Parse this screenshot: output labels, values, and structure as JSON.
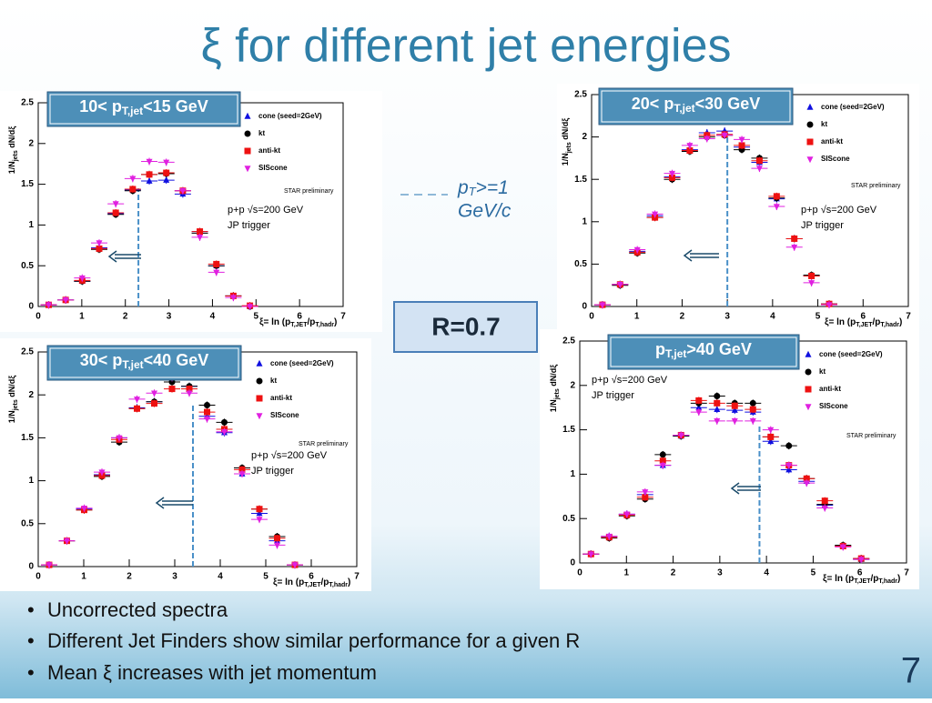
{
  "title": "ξ for different jet energies",
  "note": [
    "p",
    "T",
    ">=1",
    "GeV/c"
  ],
  "r_label": "R=0.7",
  "bullets": [
    "Uncorrected spectra",
    "Different Jet Finders show similar performance for a given R",
    "Mean ξ increases with jet momentum"
  ],
  "page_number": "7",
  "chart_data": [
    {
      "type": "scatter",
      "label": [
        "10< p",
        "T,jet",
        "<15 GeV"
      ],
      "x": [
        0.24,
        0.63,
        1.01,
        1.4,
        1.78,
        2.17,
        2.55,
        2.94,
        3.32,
        3.71,
        4.09,
        4.48,
        4.86,
        5.25,
        5.64,
        6.03
      ],
      "series": [
        {
          "name": "cone (seed=2GeV)",
          "color": "#1010e0",
          "marker": "triangle",
          "values": [
            0.02,
            0.08,
            0.31,
            0.72,
            1.14,
            1.43,
            1.54,
            1.55,
            1.38,
            0.92,
            0.5,
            0.13,
            0.0,
            null,
            null,
            null
          ]
        },
        {
          "name": "kt",
          "color": "#000000",
          "marker": "circle",
          "values": [
            0.02,
            0.08,
            0.31,
            0.7,
            1.13,
            1.42,
            1.62,
            1.63,
            1.42,
            0.9,
            0.5,
            0.13,
            0.0,
            null,
            null,
            null
          ]
        },
        {
          "name": "anti-kt",
          "color": "#ee1111",
          "marker": "square",
          "values": [
            0.02,
            0.08,
            0.32,
            0.71,
            1.15,
            1.44,
            1.62,
            1.64,
            1.42,
            0.92,
            0.52,
            0.13,
            0.01,
            null,
            null,
            null
          ]
        },
        {
          "name": "SIScone",
          "color": "#e020e0",
          "marker": "triangle-down",
          "values": [
            0.02,
            0.08,
            0.35,
            0.78,
            1.26,
            1.57,
            1.78,
            1.77,
            1.42,
            0.85,
            0.42,
            0.11,
            0.0,
            null,
            null,
            null
          ]
        }
      ],
      "xlim": [
        0,
        7
      ],
      "ylim": [
        0,
        2.5
      ],
      "xticks": [
        0,
        1,
        2,
        3,
        4,
        5,
        6,
        7
      ],
      "yticks": [
        0,
        0.5,
        1,
        1.5,
        2,
        2.5
      ],
      "xlabel": [
        "ξ= ln (p",
        "T,JET",
        "/p",
        "T,hadr",
        ")"
      ],
      "ylabel": [
        "1/N",
        "jets",
        "  dN/dξ"
      ],
      "annotations": [
        "STAR preliminary",
        "p+p √s=200 GeV",
        "JP trigger"
      ],
      "mean_xi": 2.3
    },
    {
      "type": "scatter",
      "label": [
        "20< p",
        "T,jet",
        "<30 GeV"
      ],
      "x": [
        0.24,
        0.63,
        1.01,
        1.4,
        1.78,
        2.17,
        2.55,
        2.94,
        3.32,
        3.71,
        4.09,
        4.48,
        4.86,
        5.25,
        5.64,
        6.03
      ],
      "series": [
        {
          "name": "cone (seed=2GeV)",
          "color": "#1010e0",
          "marker": "triangle",
          "values": [
            0.02,
            0.26,
            0.65,
            1.07,
            1.53,
            1.85,
            2.05,
            2.07,
            1.88,
            1.7,
            1.27,
            0.8,
            0.36,
            0.03,
            null,
            null
          ]
        },
        {
          "name": "kt",
          "color": "#000000",
          "marker": "circle",
          "values": [
            0.02,
            0.25,
            0.63,
            1.05,
            1.5,
            1.83,
            2.0,
            2.02,
            1.85,
            1.75,
            1.28,
            0.8,
            0.37,
            0.03,
            null,
            null
          ]
        },
        {
          "name": "anti-kt",
          "color": "#ee1111",
          "marker": "square",
          "values": [
            0.02,
            0.26,
            0.64,
            1.05,
            1.52,
            1.84,
            2.02,
            2.03,
            1.9,
            1.72,
            1.3,
            0.8,
            0.36,
            0.03,
            null,
            null
          ]
        },
        {
          "name": "SIScone",
          "color": "#e020e0",
          "marker": "triangle-down",
          "values": [
            0.02,
            0.26,
            0.67,
            1.09,
            1.57,
            1.9,
            1.98,
            2.02,
            1.97,
            1.63,
            1.18,
            0.7,
            0.28,
            0.02,
            null,
            null
          ]
        }
      ],
      "xlim": [
        0,
        7
      ],
      "ylim": [
        0,
        2.5
      ],
      "xticks": [
        0,
        1,
        2,
        3,
        4,
        5,
        6,
        7
      ],
      "yticks": [
        0,
        0.5,
        1,
        1.5,
        2,
        2.5
      ],
      "xlabel": [
        "ξ= ln (p",
        "T,JET",
        "/p",
        "T,hadr",
        ")"
      ],
      "ylabel": [
        "1/N",
        "jets",
        "  dN/dξ"
      ],
      "annotations": [
        "STAR preliminary",
        "p+p √s=200 GeV",
        "JP trigger"
      ],
      "mean_xi": 3.0
    },
    {
      "type": "scatter",
      "label": [
        "30< p",
        "T,jet",
        "<40 GeV"
      ],
      "x": [
        0.24,
        0.63,
        1.01,
        1.4,
        1.78,
        2.17,
        2.55,
        2.94,
        3.32,
        3.71,
        4.09,
        4.48,
        4.86,
        5.25,
        5.64,
        6.03
      ],
      "series": [
        {
          "name": "cone (seed=2GeV)",
          "color": "#1010e0",
          "marker": "triangle",
          "values": [
            0.02,
            0.3,
            0.67,
            1.07,
            1.5,
            1.85,
            1.92,
            2.2,
            2.1,
            1.75,
            1.56,
            1.08,
            0.62,
            0.3,
            0.02,
            null
          ]
        },
        {
          "name": "kt",
          "color": "#000000",
          "marker": "circle",
          "values": [
            0.02,
            0.3,
            0.66,
            1.05,
            1.45,
            1.84,
            1.92,
            2.15,
            2.1,
            1.88,
            1.68,
            1.15,
            0.67,
            0.35,
            0.02,
            null
          ]
        },
        {
          "name": "anti-kt",
          "color": "#ee1111",
          "marker": "square",
          "values": [
            0.02,
            0.3,
            0.66,
            1.06,
            1.48,
            1.84,
            1.9,
            2.07,
            2.07,
            1.8,
            1.6,
            1.13,
            0.67,
            0.33,
            0.02,
            null
          ]
        },
        {
          "name": "SIScone",
          "color": "#e020e0",
          "marker": "triangle-down",
          "values": [
            0.02,
            0.3,
            0.68,
            1.1,
            1.5,
            1.95,
            2.02,
            2.2,
            2.02,
            1.72,
            1.57,
            1.08,
            0.55,
            0.25,
            0.02,
            null
          ]
        }
      ],
      "xlim": [
        0,
        7
      ],
      "ylim": [
        0,
        2.5
      ],
      "xticks": [
        0,
        1,
        2,
        3,
        4,
        5,
        6,
        7
      ],
      "yticks": [
        0,
        0.5,
        1,
        1.5,
        2,
        2.5
      ],
      "xlabel": [
        "ξ= ln (p",
        "T,JET",
        "/p",
        "T,hadr",
        ")"
      ],
      "ylabel": [
        "1/N",
        "jets",
        "  dN/dξ"
      ],
      "annotations": [
        "STAR preliminary",
        "p+p √s=200 GeV",
        "JP trigger"
      ],
      "mean_xi": 3.4
    },
    {
      "type": "scatter",
      "label": [
        "p",
        "T,jet",
        ">40 GeV"
      ],
      "x": [
        0.24,
        0.63,
        1.01,
        1.4,
        1.78,
        2.17,
        2.55,
        2.94,
        3.32,
        3.71,
        4.09,
        4.48,
        4.86,
        5.25,
        5.64,
        6.03
      ],
      "series": [
        {
          "name": "cone (seed=2GeV)",
          "color": "#1010e0",
          "marker": "triangle",
          "values": [
            0.1,
            0.3,
            0.55,
            0.77,
            1.1,
            1.43,
            1.75,
            1.73,
            1.72,
            1.7,
            1.37,
            1.05,
            0.92,
            0.65,
            0.19,
            0.04
          ]
        },
        {
          "name": "kt",
          "color": "#000000",
          "marker": "circle",
          "values": [
            0.1,
            0.28,
            0.53,
            0.72,
            1.22,
            1.43,
            1.8,
            1.88,
            1.8,
            1.8,
            1.42,
            1.32,
            0.95,
            0.66,
            0.2,
            0.05
          ]
        },
        {
          "name": "anti-kt",
          "color": "#ee1111",
          "marker": "square",
          "values": [
            0.1,
            0.29,
            0.54,
            0.74,
            1.15,
            1.44,
            1.83,
            1.8,
            1.77,
            1.73,
            1.42,
            1.1,
            0.95,
            0.7,
            0.19,
            0.05
          ]
        },
        {
          "name": "SIScone",
          "color": "#e020e0",
          "marker": "triangle-down",
          "values": [
            0.1,
            0.3,
            0.55,
            0.8,
            1.1,
            1.44,
            1.7,
            1.6,
            1.6,
            1.6,
            1.5,
            1.1,
            0.9,
            0.62,
            0.18,
            0.04
          ]
        }
      ],
      "xlim": [
        0,
        7
      ],
      "ylim": [
        0,
        2.5
      ],
      "xticks": [
        0,
        1,
        2,
        3,
        4,
        5,
        6,
        7
      ],
      "yticks": [
        0,
        0.5,
        1,
        1.5,
        2,
        2.5
      ],
      "xlabel": [
        "ξ= ln (p",
        "T,JET",
        "/p",
        "T,hadr",
        ")"
      ],
      "ylabel": [
        "1/N",
        "jets",
        "  dN/dξ"
      ],
      "annotations": [
        "STAR preliminary",
        "p+p √s=200 GeV",
        "JP trigger"
      ],
      "mean_xi": 3.85
    }
  ]
}
